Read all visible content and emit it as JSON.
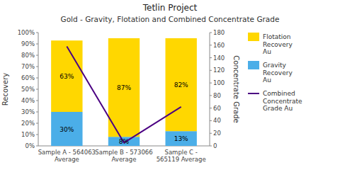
{
  "chart_data": {
    "type": "bar",
    "stacked": true,
    "title": "Tetlin Project",
    "subtitle": "Gold - Gravity, Flotation and Combined Concentrate Grade",
    "categories": [
      "Sample A - 564063\nAverage",
      "Sample B - 573066\nAverage",
      "Sample C -\n565119 Average"
    ],
    "series": [
      {
        "name": "Gravity\nRecovery\nAu",
        "color": "#4BAEE8",
        "values": [
          30,
          8,
          13
        ],
        "value_labels": [
          "30%",
          "8%",
          "13%"
        ]
      },
      {
        "name": "Flotation\nRecovery\nAu",
        "color": "#FFD700",
        "values": [
          63,
          87,
          82
        ],
        "value_labels": [
          "63%",
          "87%",
          "82%"
        ]
      },
      {
        "name": "Combined\nConcentrate\nGrade Au",
        "type": "line",
        "axis": "y2",
        "color": "#4B0082",
        "values": [
          158,
          5,
          62
        ]
      }
    ],
    "ylabel": "Recovery",
    "y2label": "Concentrate Grade",
    "ylim": [
      0,
      100
    ],
    "yticks": [
      {
        "value": 0,
        "label": "0%"
      },
      {
        "value": 10,
        "label": "10%"
      },
      {
        "value": 20,
        "label": "20%"
      },
      {
        "value": 30,
        "label": "30%"
      },
      {
        "value": 40,
        "label": "40%"
      },
      {
        "value": 50,
        "label": "50%"
      },
      {
        "value": 60,
        "label": "60%"
      },
      {
        "value": 70,
        "label": "70%"
      },
      {
        "value": 80,
        "label": "80%"
      },
      {
        "value": 90,
        "label": "90%"
      },
      {
        "value": 100,
        "label": "100%"
      }
    ],
    "y2lim": [
      0,
      180
    ],
    "y2ticks": [
      0,
      20,
      40,
      60,
      80,
      100,
      120,
      140,
      160,
      180
    ],
    "data_labels": true,
    "legend": "right"
  }
}
